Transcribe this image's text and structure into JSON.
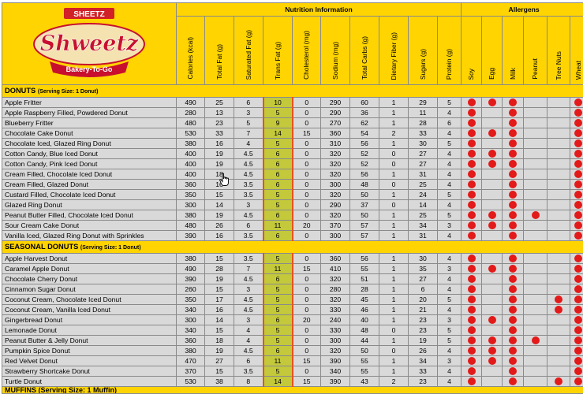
{
  "logo": {
    "brand": "SHEETZ",
    "name": "Shweetz",
    "tagline": "Bakery-To-Go"
  },
  "headers": {
    "nutrition_group": "Nutrition Information",
    "allergens_group": "Allergens",
    "nutrition_cols": [
      "Calories (kcal)",
      "Total Fat (g)",
      "Saturated Fat (g)",
      "Trans Fat (g)",
      "Cholesterol (mg)",
      "Sodium (mg)",
      "Total Carbs (g)",
      "Dietary Fiber (g)",
      "Sugars (g)",
      "Protein (g)"
    ],
    "allergen_cols": [
      "Soy",
      "Egg",
      "Milk",
      "Peanut",
      "Tree Nuts",
      "Wheat"
    ]
  },
  "sections": [
    {
      "title": "DONUTS",
      "serving": "(Serving Size: 1 Donut)",
      "rows": [
        {
          "name": "Apple Fritter",
          "values": [
            "490",
            "25",
            "6",
            "10",
            "0",
            "290",
            "60",
            "1",
            "29",
            "5"
          ],
          "allergens": [
            1,
            1,
            1,
            0,
            0,
            1
          ]
        },
        {
          "name": "Apple Raspberry Filled, Powdered Donut",
          "values": [
            "280",
            "13",
            "3",
            "5",
            "0",
            "290",
            "36",
            "1",
            "11",
            "4"
          ],
          "allergens": [
            1,
            0,
            1,
            0,
            0,
            1
          ]
        },
        {
          "name": "Blueberry Fritter",
          "values": [
            "480",
            "23",
            "5",
            "9",
            "0",
            "270",
            "62",
            "1",
            "28",
            "6"
          ],
          "allergens": [
            1,
            0,
            1,
            0,
            0,
            1
          ]
        },
        {
          "name": "Chocolate Cake Donut",
          "values": [
            "530",
            "33",
            "7",
            "14",
            "15",
            "360",
            "54",
            "2",
            "33",
            "4"
          ],
          "allergens": [
            1,
            1,
            1,
            0,
            0,
            1
          ]
        },
        {
          "name": "Chocolate Iced, Glazed Ring Donut",
          "values": [
            "380",
            "16",
            "4",
            "5",
            "0",
            "310",
            "56",
            "1",
            "30",
            "5"
          ],
          "allergens": [
            1,
            0,
            1,
            0,
            0,
            1
          ]
        },
        {
          "name": "Cotton Candy, Blue Iced Donut",
          "values": [
            "400",
            "19",
            "4.5",
            "6",
            "0",
            "320",
            "52",
            "0",
            "27",
            "4"
          ],
          "allergens": [
            1,
            1,
            1,
            0,
            0,
            1
          ]
        },
        {
          "name": "Cotton Candy, Pink Iced Donut",
          "values": [
            "400",
            "19",
            "4.5",
            "6",
            "0",
            "320",
            "52",
            "0",
            "27",
            "4"
          ],
          "allergens": [
            1,
            1,
            1,
            0,
            0,
            1
          ]
        },
        {
          "name": "Cream Filled, Chocolate Iced Donut",
          "values": [
            "400",
            "18",
            "4.5",
            "6",
            "0",
            "320",
            "56",
            "1",
            "31",
            "4"
          ],
          "allergens": [
            1,
            0,
            1,
            0,
            0,
            1
          ]
        },
        {
          "name": "Cream Filled, Glazed Donut",
          "values": [
            "360",
            "16",
            "3.5",
            "6",
            "0",
            "300",
            "48",
            "0",
            "25",
            "4"
          ],
          "allergens": [
            1,
            0,
            1,
            0,
            0,
            1
          ]
        },
        {
          "name": "Custard Filled, Chocolate Iced Donut",
          "values": [
            "350",
            "15",
            "3.5",
            "5",
            "0",
            "320",
            "50",
            "1",
            "24",
            "5"
          ],
          "allergens": [
            1,
            0,
            1,
            0,
            0,
            1
          ]
        },
        {
          "name": "Glazed Ring Donut",
          "values": [
            "300",
            "14",
            "3",
            "5",
            "0",
            "290",
            "37",
            "0",
            "14",
            "4"
          ],
          "allergens": [
            1,
            0,
            1,
            0,
            0,
            1
          ]
        },
        {
          "name": "Peanut Butter Filled, Chocolate Iced Donut",
          "values": [
            "380",
            "19",
            "4.5",
            "6",
            "0",
            "320",
            "50",
            "1",
            "25",
            "5"
          ],
          "allergens": [
            1,
            1,
            1,
            1,
            0,
            1
          ]
        },
        {
          "name": "Sour Cream Cake Donut",
          "values": [
            "480",
            "26",
            "6",
            "11",
            "20",
            "370",
            "57",
            "1",
            "34",
            "3"
          ],
          "allergens": [
            1,
            1,
            1,
            0,
            0,
            1
          ]
        },
        {
          "name": "Vanilla Iced, Glazed Ring Donut with Sprinkles",
          "values": [
            "390",
            "16",
            "3.5",
            "6",
            "0",
            "300",
            "57",
            "1",
            "31",
            "4"
          ],
          "allergens": [
            1,
            0,
            1,
            0,
            0,
            1
          ]
        }
      ]
    },
    {
      "title": "SEASONAL DONUTS",
      "serving": "(Serving Size: 1 Donut)",
      "rows": [
        {
          "name": "Apple Harvest Donut",
          "values": [
            "380",
            "15",
            "3.5",
            "5",
            "0",
            "360",
            "56",
            "1",
            "30",
            "4"
          ],
          "allergens": [
            1,
            0,
            1,
            0,
            0,
            1
          ]
        },
        {
          "name": "Caramel Apple Donut",
          "values": [
            "490",
            "28",
            "7",
            "11",
            "15",
            "410",
            "55",
            "1",
            "35",
            "3"
          ],
          "allergens": [
            1,
            1,
            1,
            0,
            0,
            1
          ]
        },
        {
          "name": "Chocolate Cherry Donut",
          "values": [
            "390",
            "19",
            "4.5",
            "6",
            "0",
            "320",
            "51",
            "1",
            "27",
            "4"
          ],
          "allergens": [
            1,
            0,
            1,
            0,
            0,
            1
          ]
        },
        {
          "name": "Cinnamon Sugar Donut",
          "values": [
            "260",
            "15",
            "3",
            "5",
            "0",
            "280",
            "28",
            "1",
            "6",
            "4"
          ],
          "allergens": [
            1,
            0,
            1,
            0,
            0,
            1
          ]
        },
        {
          "name": "Coconut Cream, Chocolate Iced Donut",
          "values": [
            "350",
            "17",
            "4.5",
            "5",
            "0",
            "320",
            "45",
            "1",
            "20",
            "5"
          ],
          "allergens": [
            1,
            0,
            1,
            0,
            1,
            1
          ]
        },
        {
          "name": "Coconut Cream, Vanilla Iced Donut",
          "values": [
            "340",
            "16",
            "4.5",
            "5",
            "0",
            "330",
            "46",
            "1",
            "21",
            "4"
          ],
          "allergens": [
            1,
            0,
            1,
            0,
            1,
            1
          ]
        },
        {
          "name": "Gingerbread Donut",
          "values": [
            "300",
            "14",
            "3",
            "6",
            "20",
            "240",
            "40",
            "1",
            "23",
            "3"
          ],
          "allergens": [
            1,
            1,
            1,
            0,
            0,
            1
          ]
        },
        {
          "name": "Lemonade Donut",
          "values": [
            "340",
            "15",
            "4",
            "5",
            "0",
            "330",
            "48",
            "0",
            "23",
            "5"
          ],
          "allergens": [
            1,
            0,
            1,
            0,
            0,
            1
          ]
        },
        {
          "name": "Peanut Butter & Jelly Donut",
          "values": [
            "360",
            "18",
            "4",
            "5",
            "0",
            "300",
            "44",
            "1",
            "19",
            "5"
          ],
          "allergens": [
            1,
            1,
            1,
            1,
            0,
            1
          ]
        },
        {
          "name": "Pumpkin Spice Donut",
          "values": [
            "380",
            "19",
            "4.5",
            "6",
            "0",
            "320",
            "50",
            "0",
            "26",
            "4"
          ],
          "allergens": [
            1,
            1,
            1,
            0,
            0,
            1
          ]
        },
        {
          "name": "Red Velvet Donut",
          "values": [
            "470",
            "27",
            "6",
            "11",
            "15",
            "390",
            "55",
            "1",
            "34",
            "3"
          ],
          "allergens": [
            1,
            1,
            1,
            0,
            0,
            1
          ]
        },
        {
          "name": "Strawberry Shortcake Donut",
          "values": [
            "370",
            "15",
            "3.5",
            "5",
            "0",
            "340",
            "55",
            "1",
            "33",
            "4"
          ],
          "allergens": [
            1,
            0,
            1,
            0,
            0,
            1
          ]
        },
        {
          "name": "Turtle Donut",
          "values": [
            "530",
            "38",
            "8",
            "14",
            "15",
            "390",
            "43",
            "2",
            "23",
            "4"
          ],
          "allergens": [
            1,
            0,
            1,
            0,
            1,
            1
          ]
        }
      ]
    }
  ],
  "next_section": {
    "title": "MUFFINS",
    "serving": "(Serving Size: 1 Muffin)"
  },
  "colors": {
    "header_yellow": "#ffd400",
    "row_gray": "#d9d9d9",
    "trans_fat_highlight": "#c3c93a",
    "trans_fat_border": "#e8531d",
    "allergen_dot": "#e31a1a"
  },
  "cursor_icon": "hand-pointer-icon"
}
